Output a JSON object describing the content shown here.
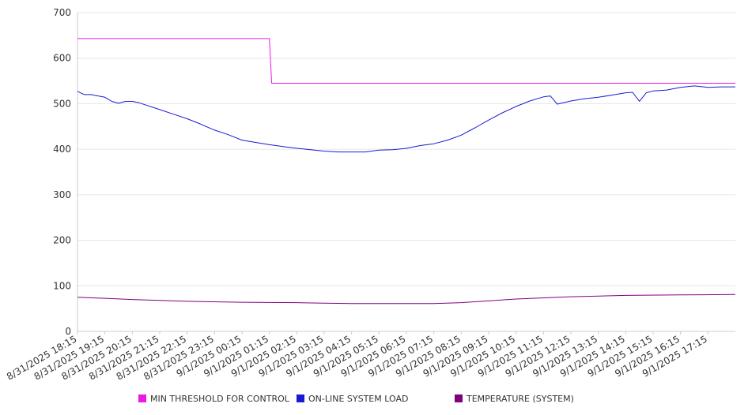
{
  "colors": {
    "grid": "#e6e6e6",
    "axis": "#cccccc",
    "text": "#333333"
  },
  "chart_data": {
    "type": "line",
    "ylim": [
      0,
      700
    ],
    "yticks": [
      0,
      100,
      200,
      300,
      400,
      500,
      600,
      700
    ],
    "grid": "horizontal",
    "legend_position": "bottom",
    "xlim_minutes": [
      0,
      1440
    ],
    "x_tick_labels": [
      "8/31/2025 18:15",
      "8/31/2025 19:15",
      "8/31/2025 20:15",
      "8/31/2025 21:15",
      "8/31/2025 22:15",
      "8/31/2025 23:15",
      "9/1/2025 00:15",
      "9/1/2025 01:15",
      "9/1/2025 02:15",
      "9/1/2025 03:15",
      "9/1/2025 04:15",
      "9/1/2025 05:15",
      "9/1/2025 06:15",
      "9/1/2025 07:15",
      "9/1/2025 08:15",
      "9/1/2025 09:15",
      "9/1/2025 10:15",
      "9/1/2025 11:15",
      "9/1/2025 12:15",
      "9/1/2025 13:15",
      "9/1/2025 14:15",
      "9/1/2025 15:15",
      "9/1/2025 16:15",
      "9/1/2025 17:15"
    ],
    "series": [
      {
        "name": "MIN THRESHOLD FOR CONTROL",
        "color": "#e81ae8",
        "x": [
          "8/31/2025 18:15",
          "9/1/2025 01:15",
          "9/1/2025 01:20",
          "9/1/2025 18:15"
        ],
        "values": [
          643,
          643,
          545,
          545
        ]
      },
      {
        "name": "ON-LINE SYSTEM LOAD",
        "color": "#1a1ad4",
        "x": [
          "8/31/2025 18:15",
          "8/31/2025 18:30",
          "8/31/2025 18:45",
          "8/31/2025 19:15",
          "8/31/2025 19:30",
          "8/31/2025 19:45",
          "8/31/2025 20:00",
          "8/31/2025 20:15",
          "8/31/2025 20:30",
          "8/31/2025 20:45",
          "8/31/2025 21:00",
          "8/31/2025 21:15",
          "8/31/2025 21:45",
          "8/31/2025 22:15",
          "8/31/2025 22:45",
          "8/31/2025 23:15",
          "8/31/2025 23:45",
          "9/1/2025 00:15",
          "9/1/2025 00:45",
          "9/1/2025 01:15",
          "9/1/2025 01:45",
          "9/1/2025 02:15",
          "9/1/2025 02:45",
          "9/1/2025 03:15",
          "9/1/2025 03:45",
          "9/1/2025 04:15",
          "9/1/2025 04:45",
          "9/1/2025 05:15",
          "9/1/2025 05:45",
          "9/1/2025 06:15",
          "9/1/2025 06:45",
          "9/1/2025 07:15",
          "9/1/2025 07:45",
          "9/1/2025 08:15",
          "9/1/2025 08:45",
          "9/1/2025 09:15",
          "9/1/2025 09:45",
          "9/1/2025 10:15",
          "9/1/2025 10:45",
          "9/1/2025 11:15",
          "9/1/2025 11:30",
          "9/1/2025 11:45",
          "9/1/2025 12:15",
          "9/1/2025 12:45",
          "9/1/2025 13:15",
          "9/1/2025 13:45",
          "9/1/2025 14:15",
          "9/1/2025 14:30",
          "9/1/2025 14:45",
          "9/1/2025 15:00",
          "9/1/2025 15:15",
          "9/1/2025 15:45",
          "9/1/2025 16:15",
          "9/1/2025 16:45",
          "9/1/2025 17:15",
          "9/1/2025 17:45",
          "9/1/2025 18:15"
        ],
        "values": [
          527,
          520,
          520,
          514,
          505,
          501,
          505,
          505,
          502,
          497,
          492,
          487,
          477,
          467,
          455,
          442,
          432,
          420,
          415,
          410,
          406,
          402,
          399,
          396,
          394,
          394,
          394,
          398,
          399,
          402,
          408,
          412,
          420,
          431,
          447,
          464,
          480,
          494,
          506,
          515,
          517,
          499,
          506,
          511,
          514,
          519,
          524,
          525,
          505,
          524,
          528,
          530,
          536,
          539,
          536,
          537,
          537
        ]
      },
      {
        "name": "TEMPERATURE (SYSTEM)",
        "color": "#800080",
        "x": [
          "8/31/2025 18:15",
          "8/31/2025 20:15",
          "8/31/2025 22:15",
          "9/1/2025 00:15",
          "9/1/2025 02:15",
          "9/1/2025 03:15",
          "9/1/2025 04:15",
          "9/1/2025 06:15",
          "9/1/2025 07:15",
          "9/1/2025 08:15",
          "9/1/2025 10:15",
          "9/1/2025 12:15",
          "9/1/2025 14:15",
          "9/1/2025 16:15",
          "9/1/2025 18:15"
        ],
        "values": [
          75,
          70,
          66,
          64,
          63,
          62,
          61,
          61,
          61,
          63,
          71,
          76,
          79,
          80,
          81
        ]
      }
    ]
  }
}
